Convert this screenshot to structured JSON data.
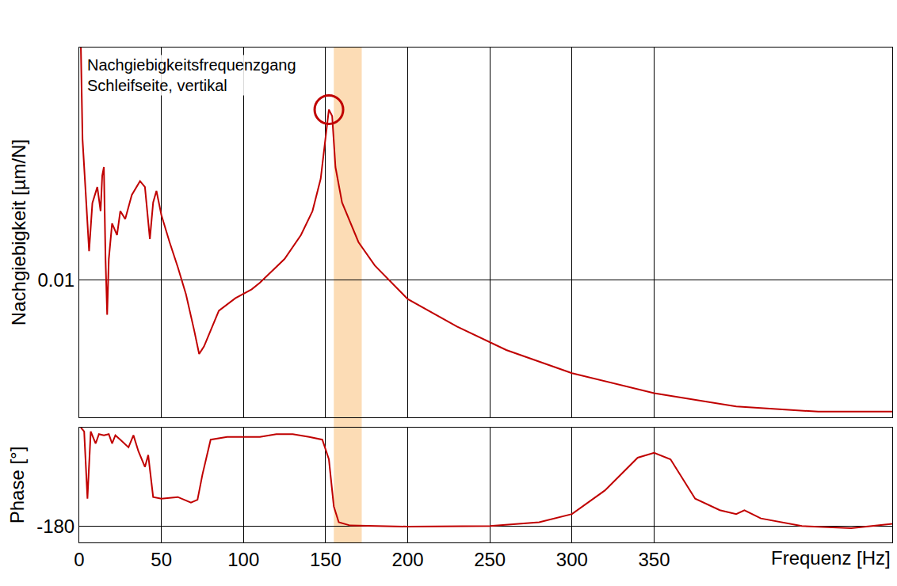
{
  "chart_data": [
    {
      "type": "line",
      "annotations": [
        "Nachgiebigkeitsfrequenzgang",
        "Schleifseite, vertikal"
      ],
      "y_label": "Nachgiebigkeit [µm/N]",
      "log": "y",
      "grid": true,
      "tick_labels": "y",
      "color": "#c00000",
      "band": [
        155,
        172
      ],
      "xlim": [
        0,
        495
      ],
      "xticks": [
        0,
        50,
        100,
        150,
        200,
        250,
        300,
        350
      ],
      "ylim": [
        0.001,
        0.5
      ],
      "yticks": [
        0.01
      ],
      "x": [
        1,
        2,
        4,
        6,
        8,
        11,
        13,
        14,
        15,
        16,
        17,
        18,
        20,
        23,
        25,
        28,
        32,
        37,
        40,
        41,
        43,
        45,
        47,
        50,
        55,
        60,
        65,
        70,
        73,
        76,
        80,
        85,
        95,
        105,
        110,
        115,
        125,
        135,
        142,
        147,
        150,
        152,
        154,
        156,
        160,
        170,
        180,
        200,
        230,
        260,
        300,
        350,
        400,
        450,
        495
      ],
      "values": [
        0.5,
        0.107,
        0.042,
        0.0163,
        0.0366,
        0.048,
        0.032,
        0.058,
        0.067,
        0.0143,
        0.0056,
        0.0143,
        0.026,
        0.0214,
        0.032,
        0.028,
        0.042,
        0.053,
        0.048,
        0.037,
        0.02,
        0.037,
        0.045,
        0.03,
        0.019,
        0.0125,
        0.0079,
        0.0043,
        0.0029,
        0.0033,
        0.0043,
        0.006,
        0.0074,
        0.0086,
        0.0096,
        0.011,
        0.0143,
        0.0214,
        0.032,
        0.055,
        0.107,
        0.176,
        0.158,
        0.067,
        0.037,
        0.019,
        0.0128,
        0.0073,
        0.0046,
        0.0031,
        0.0021,
        0.0015,
        0.0012,
        0.0011,
        0.0011
      ]
    },
    {
      "type": "line",
      "y_label": "Phase [°]",
      "x_label": "Frequenz [Hz]",
      "grid": true,
      "color": "#c00000",
      "xlim": [
        0,
        495
      ],
      "xticks": [
        0,
        50,
        100,
        150,
        200,
        250,
        300,
        350
      ],
      "ylim": [
        -210,
        0
      ],
      "yticks": [
        -180
      ],
      "x": [
        1,
        3,
        5,
        7,
        10,
        12,
        15,
        18,
        20,
        22,
        25,
        30,
        33,
        36,
        40,
        42,
        45,
        50,
        60,
        68,
        72,
        75,
        80,
        90,
        100,
        110,
        120,
        130,
        140,
        148,
        152,
        155,
        158,
        165,
        200,
        250,
        280,
        300,
        320,
        340,
        350,
        360,
        375,
        390,
        400,
        405,
        415,
        440,
        470,
        495
      ],
      "values": [
        0,
        -7,
        -130,
        -7,
        -29,
        -12,
        -14,
        -12,
        -29,
        -14,
        -22,
        -36,
        -14,
        -43,
        -72,
        -50,
        -127,
        -130,
        -127,
        -137,
        -132,
        -86,
        -22,
        -17,
        -17,
        -17,
        -12,
        -12,
        -17,
        -22,
        -58,
        -144,
        -173,
        -179,
        -181,
        -180,
        -173,
        -158,
        -115,
        -55,
        -46,
        -58,
        -130,
        -151,
        -158,
        -151,
        -166,
        -180,
        -184,
        -176
      ]
    }
  ]
}
